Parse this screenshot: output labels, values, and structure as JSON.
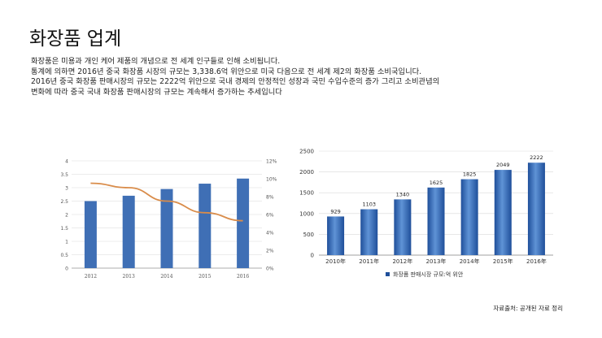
{
  "slide": {
    "title": "화장품 업계",
    "description": [
      "화장품은 미용과 개인 케어 제품의 개념으로 전 세계 인구들로 인해 소비됩니다.",
      "통계에 의하면 2016년 중국 화장품 시장의 규모는 3,338.6억 위안으로 미국 다음으로 전  세계 제2의 화장품 소비국입니다.",
      "2016년 중국 화장품 판매시장의 규모는 2222억 위안으로 국내 경제의 안정적인 성장과 국민  수입수준의 증가 그리고 소비관념의",
      "변화에 따라 중국 국내 화장품 판매시장의 규모는 계속해서 증가하는 추세입니다"
    ],
    "source": "자료출처: 공개된 자료 정리"
  },
  "colors": {
    "bar_left": "#3f6fb5",
    "line_left": "#d98c4a",
    "bar_right_light": "#5f93d6",
    "bar_right_dark": "#1f4f9a",
    "axis_text": "#555555",
    "grid": "#d9d9d9"
  },
  "chart_data": [
    {
      "type": "bar",
      "title": "",
      "categories": [
        "2012",
        "2013",
        "2014",
        "2015",
        "2016"
      ],
      "series": [
        {
          "values": [
            2.5,
            2.7,
            2.95,
            3.15,
            3.34
          ]
        },
        {
          "values": [
            9.5,
            9.0,
            7.5,
            6.2,
            5.3
          ]
        }
      ],
      "ylim": [
        0,
        4
      ],
      "y2lim": [
        0,
        12
      ],
      "y_ticks": [
        "0",
        "0.5",
        "1",
        "1.5",
        "2",
        "2.5",
        "3",
        "3.5",
        "4"
      ],
      "y2_ticks": [
        "0%",
        "2%",
        "4%",
        "6%",
        "8%",
        "10%",
        "12%"
      ],
      "grid": true
    },
    {
      "type": "bar",
      "categories": [
        "2010年",
        "2011年",
        "2012年",
        "2013年",
        "2014年",
        "2015年",
        "2016年"
      ],
      "series": [
        {
          "name": "화장품 판매시장 규모:억 위안",
          "values": [
            929,
            1103,
            1340,
            1625,
            1825,
            2049,
            2222
          ]
        }
      ],
      "y_ticks": [
        0,
        500,
        1000,
        1500,
        2000,
        2500
      ],
      "ylim": [
        0,
        2500
      ],
      "grid": true,
      "legend": "bottom"
    }
  ]
}
